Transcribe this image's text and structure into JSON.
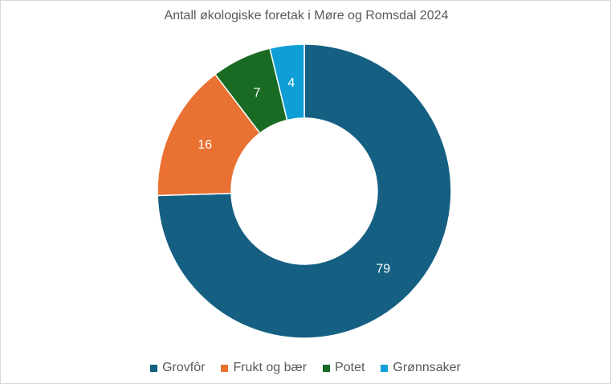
{
  "chart_data": {
    "type": "pie",
    "donut": true,
    "title": "Antall økologiske foretak i Møre og Romsdal 2024",
    "categories": [
      "Grovfôr",
      "Frukt og bær",
      "Potet",
      "Grønnsaker"
    ],
    "values": [
      79,
      16,
      7,
      4
    ],
    "colors": [
      "#156082",
      "#E97132",
      "#196B24",
      "#0F9ED5"
    ],
    "data_labels": [
      "79",
      "16",
      "7",
      "4"
    ],
    "legend_position": "bottom"
  }
}
